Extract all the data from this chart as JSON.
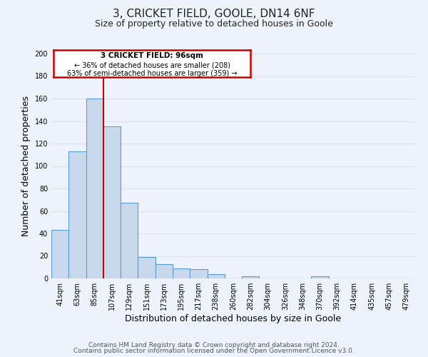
{
  "title": "3, CRICKET FIELD, GOOLE, DN14 6NF",
  "subtitle": "Size of property relative to detached houses in Goole",
  "xlabel": "Distribution of detached houses by size in Goole",
  "ylabel": "Number of detached properties",
  "bin_labels": [
    "41sqm",
    "63sqm",
    "85sqm",
    "107sqm",
    "129sqm",
    "151sqm",
    "173sqm",
    "195sqm",
    "217sqm",
    "238sqm",
    "260sqm",
    "282sqm",
    "304sqm",
    "326sqm",
    "348sqm",
    "370sqm",
    "392sqm",
    "414sqm",
    "435sqm",
    "457sqm",
    "479sqm"
  ],
  "bar_values": [
    43,
    113,
    160,
    135,
    67,
    19,
    13,
    9,
    8,
    4,
    0,
    2,
    0,
    0,
    0,
    2,
    0,
    0,
    0,
    0,
    0
  ],
  "bar_color": "#c9d9ed",
  "bar_edge_color": "#5b9bd5",
  "ylim": [
    0,
    200
  ],
  "yticks": [
    0,
    20,
    40,
    60,
    80,
    100,
    120,
    140,
    160,
    180,
    200
  ],
  "red_line_bin_index": 2.5,
  "annotation_text_line1": "3 CRICKET FIELD: 96sqm",
  "annotation_text_line2": "← 36% of detached houses are smaller (208)",
  "annotation_text_line3": "63% of semi-detached houses are larger (359) →",
  "footer_line1": "Contains HM Land Registry data © Crown copyright and database right 2024.",
  "footer_line2": "Contains public sector information licensed under the Open Government Licence v3.0.",
  "background_color": "#eef2fa",
  "grid_color": "#d8e2f0",
  "title_fontsize": 11,
  "subtitle_fontsize": 9,
  "axis_label_fontsize": 9,
  "tick_fontsize": 7,
  "footer_fontsize": 6.5
}
